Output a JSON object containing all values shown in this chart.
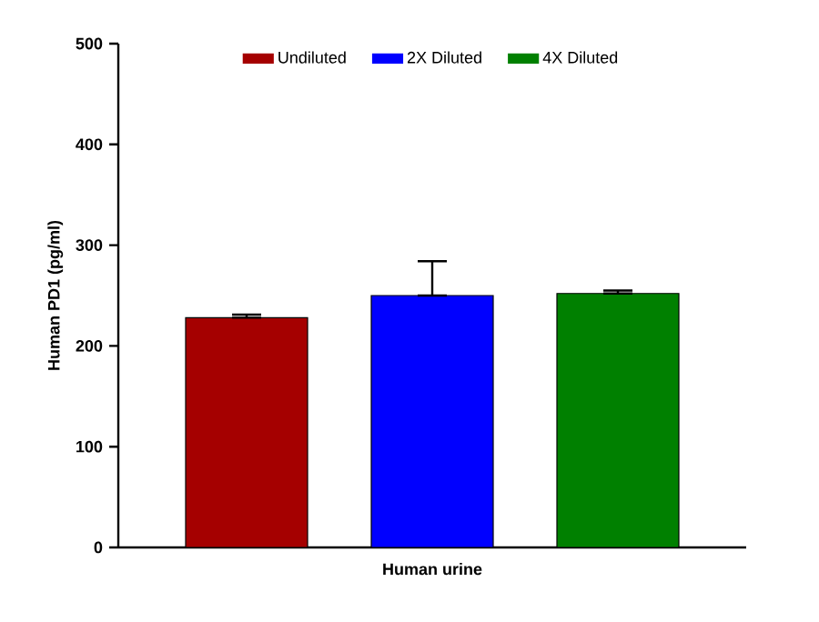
{
  "chart_data": {
    "type": "bar",
    "categories": [
      "Human urine"
    ],
    "ylabel": "Human PD1 (pg/ml)",
    "series": [
      {
        "name": "Undiluted",
        "color": "#a50000",
        "values": [
          228
        ],
        "errors": [
          [
            228,
            231
          ]
        ]
      },
      {
        "name": "2X Diluted",
        "color": "#0000ff",
        "values": [
          250
        ],
        "errors": [
          [
            250,
            284
          ]
        ]
      },
      {
        "name": "4X Diluted",
        "color": "#008000",
        "values": [
          252
        ],
        "errors": [
          [
            252,
            255
          ]
        ]
      }
    ],
    "ylim": [
      0,
      500
    ],
    "yticks": [
      0,
      100,
      200,
      300,
      400,
      500
    ],
    "grid": false,
    "legend": "top"
  }
}
